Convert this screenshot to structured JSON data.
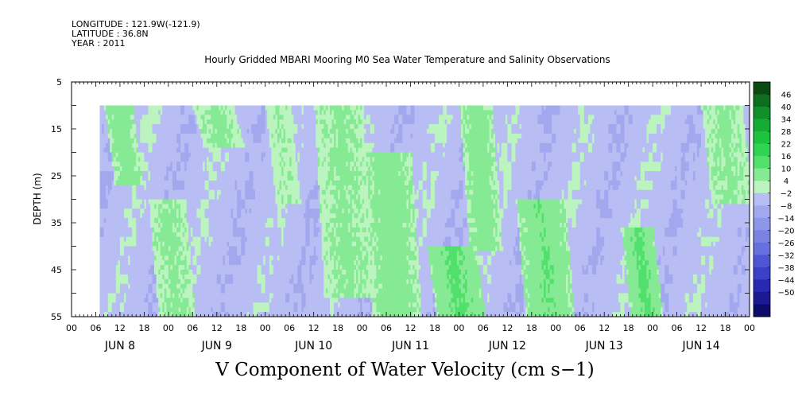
{
  "meta": {
    "longitude": "LONGITUDE : 121.9W(-121.9)",
    "latitude": "LATITUDE : 36.8N",
    "year": "YEAR : 2011"
  },
  "chart_data": {
    "type": "heatmap",
    "title": "V Component of Water Velocity (cm s−1)",
    "subtitle": "Hourly Gridded MBARI Mooring M0 Sea Water Temperature and Salinity Observations",
    "xlabel": "",
    "ylabel": "DEPTH (m)",
    "x_range_hours": [
      0,
      168
    ],
    "x_hour_ticks": [
      "00",
      "06",
      "12",
      "18",
      "00",
      "06",
      "12",
      "18",
      "00",
      "06",
      "12",
      "18",
      "00",
      "06",
      "12",
      "18",
      "00",
      "06",
      "12",
      "18",
      "00",
      "06",
      "12",
      "18",
      "00",
      "06",
      "12",
      "18",
      "00"
    ],
    "day_labels": [
      "JUN  8",
      "JUN  9",
      "JUN 10",
      "JUN 11",
      "JUN 12",
      "JUN 13",
      "JUN 14"
    ],
    "ylim": [
      55,
      5
    ],
    "y_ticks": [
      "5",
      "15",
      "25",
      "35",
      "45",
      "55"
    ],
    "data_depth_range": [
      10,
      55
    ],
    "data_time_start_hour": 7,
    "colorbar": {
      "levels": [
        "46",
        "40",
        "34",
        "28",
        "22",
        "16",
        "10",
        "4",
        "−2",
        "−8",
        "−14",
        "−20",
        "−26",
        "−32",
        "−38",
        "−44",
        "−50"
      ],
      "colors": [
        "#0a4a12",
        "#0c6e1e",
        "#10902a",
        "#14ac34",
        "#1cc43e",
        "#30d452",
        "#52e06c",
        "#86ea94",
        "#bcf4c0",
        "#b8bdf4",
        "#a2a8ee",
        "#8e96ea",
        "#7a82e4",
        "#6670de",
        "#4e56d4",
        "#3a40c8",
        "#2828b4",
        "#1a1a92",
        "#0c0c6c"
      ]
    },
    "field_summary": {
      "background_range": [
        -8,
        -2
      ],
      "positive_bands": [
        {
          "start_hour": 8,
          "end_hour": 15,
          "top_depth": 10,
          "bottom_depth": 26,
          "value": 8
        },
        {
          "start_hour": 19,
          "end_hour": 28,
          "top_depth": 30,
          "bottom_depth": 55,
          "value": 6
        },
        {
          "start_hour": 30,
          "end_hour": 40,
          "top_depth": 10,
          "bottom_depth": 18,
          "value": 6
        },
        {
          "start_hour": 48,
          "end_hour": 54,
          "top_depth": 10,
          "bottom_depth": 30,
          "value": 4
        },
        {
          "start_hour": 60,
          "end_hour": 72,
          "top_depth": 10,
          "bottom_depth": 50,
          "value": 6
        },
        {
          "start_hour": 72,
          "end_hour": 84,
          "top_depth": 20,
          "bottom_depth": 55,
          "value": 8
        },
        {
          "start_hour": 88,
          "end_hour": 100,
          "top_depth": 40,
          "bottom_depth": 55,
          "value": 12
        },
        {
          "start_hour": 96,
          "end_hour": 104,
          "top_depth": 10,
          "bottom_depth": 40,
          "value": 8
        },
        {
          "start_hour": 110,
          "end_hour": 122,
          "top_depth": 30,
          "bottom_depth": 55,
          "value": 10
        },
        {
          "start_hour": 136,
          "end_hour": 144,
          "top_depth": 36,
          "bottom_depth": 55,
          "value": 12
        },
        {
          "start_hour": 156,
          "end_hour": 166,
          "top_depth": 10,
          "bottom_depth": 30,
          "value": 6
        }
      ]
    }
  }
}
